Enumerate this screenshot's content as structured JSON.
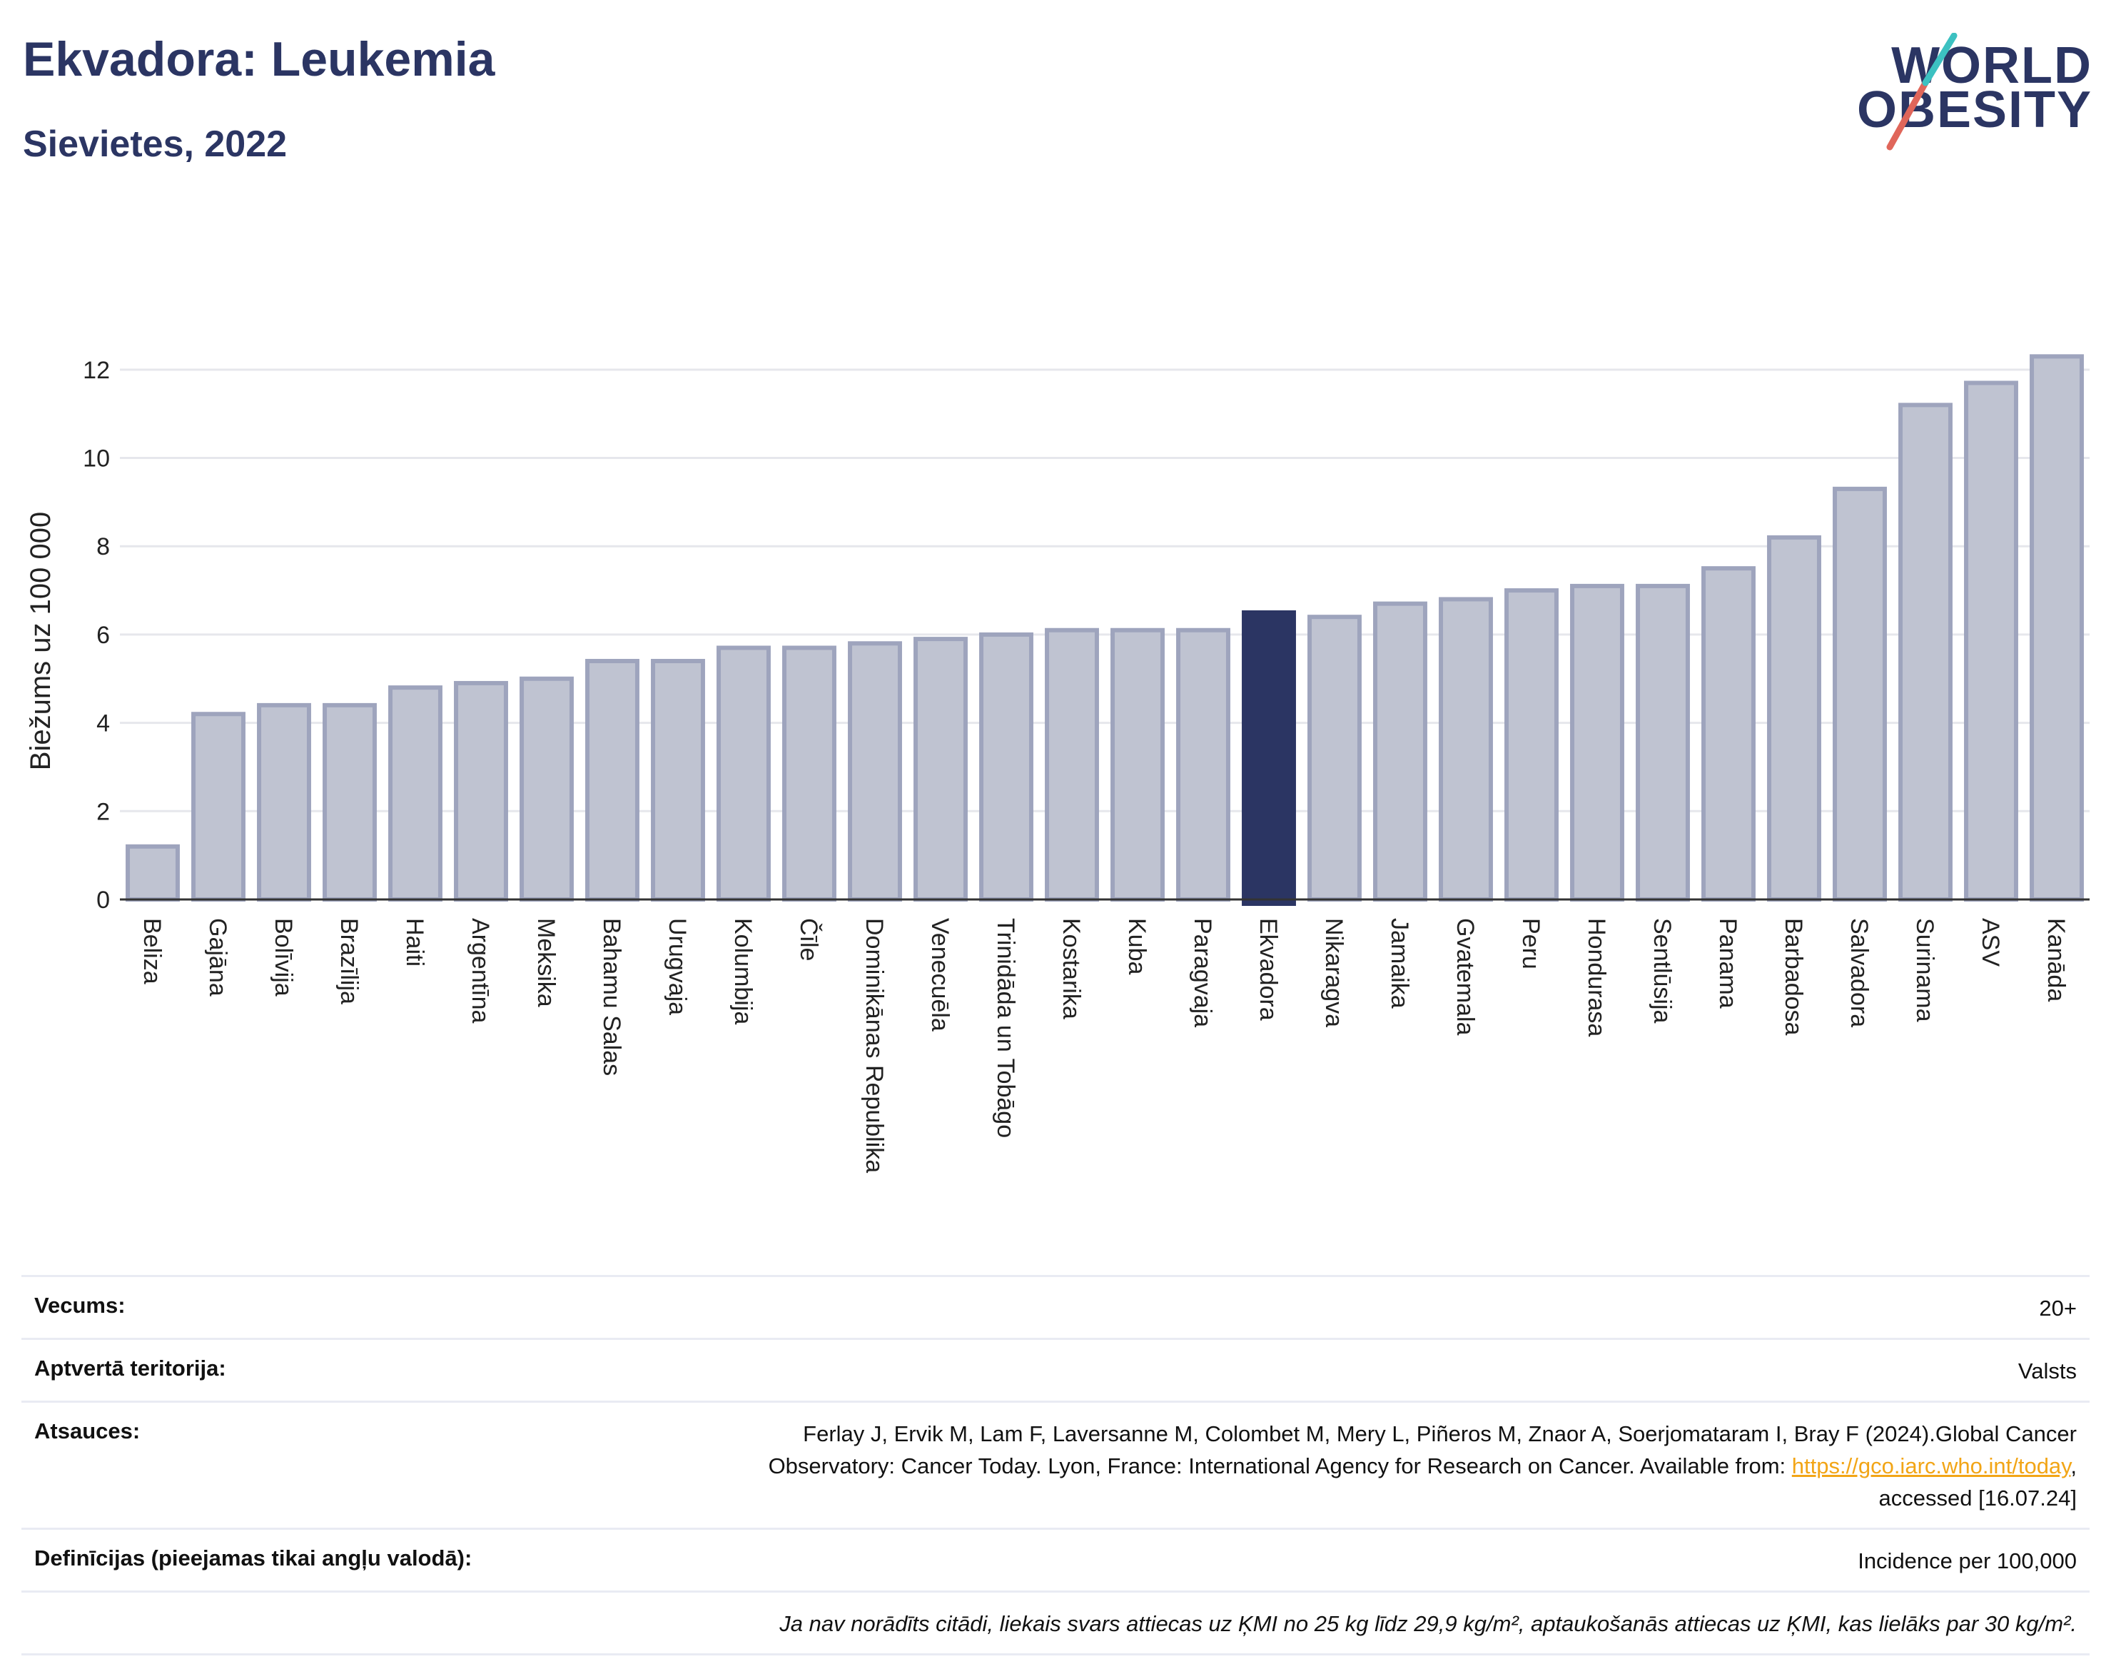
{
  "header": {
    "title": "Ekvadora: Leukemia",
    "subtitle": "Sievietes, 2022"
  },
  "logo": {
    "line1": "WORLD",
    "line2": "OBESITY",
    "colors": [
      "#2b3563",
      "#e0665a",
      "#3cc1c1"
    ]
  },
  "colors": {
    "bar": "#bfc3d1",
    "bar_stroke": "#9ea4bd",
    "highlight": "#2b3563",
    "axis": "#333333",
    "grid": "#e6e7ec"
  },
  "chart_data": {
    "type": "bar",
    "ylabel": "Biežums uz 100 000",
    "ylim": [
      0,
      13
    ],
    "yticks": [
      0,
      2,
      4,
      6,
      8,
      10,
      12
    ],
    "grid": true,
    "highlight": "Ekvadora",
    "categories": [
      "Beliza",
      "Gajāna",
      "Bolīvija",
      "Brazīlija",
      "Haiti",
      "Argentīna",
      "Meksika",
      "Bahamu Salas",
      "Urugvaja",
      "Kolumbija",
      "Čīle",
      "Dominikānas Republika",
      "Venecuēla",
      "Trinidāda un Tobāgo",
      "Kostarika",
      "Kuba",
      "Paragvaja",
      "Ekvadora",
      "Nikaragva",
      "Jamaika",
      "Gvatemala",
      "Peru",
      "Hondurasa",
      "Sentlūsija",
      "Panama",
      "Barbadosa",
      "Salvadora",
      "Surinama",
      "ASV",
      "Kanāda"
    ],
    "values": [
      1.2,
      4.2,
      4.4,
      4.4,
      4.8,
      4.9,
      5.0,
      5.4,
      5.4,
      5.7,
      5.7,
      5.8,
      5.9,
      6.0,
      6.1,
      6.1,
      6.1,
      6.5,
      6.4,
      6.7,
      6.8,
      7.0,
      7.1,
      7.1,
      7.5,
      8.2,
      9.3,
      11.2,
      11.7,
      12.3
    ]
  },
  "info": {
    "age_label": "Vecums:",
    "age_value": "20+",
    "coverage_label": "Aptvertā teritorija:",
    "coverage_value": "Valsts",
    "refs_label": "Atsauces:",
    "refs_line1": "Ferlay J, Ervik M, Lam F, Laversanne M, Colombet M, Mery L, Piñeros M, Znaor A, Soerjomataram I, Bray F (2024).Global Cancer",
    "refs_line2": "Observatory: Cancer Today. Lyon, France: International Agency for Research on Cancer. Available from: ",
    "refs_link": "https://gco.iarc.who.int/today",
    "refs_line2_end": ",",
    "refs_line3": "accessed [16.07.24]",
    "defs_label": "Definīcijas (pieejamas tikai angļu valodā):",
    "defs_value": "Incidence per 100,000",
    "note": "Ja nav norādīts citādi, liekais svars attiecas uz ĶMI no 25 kg līdz 29,9 kg/m², aptaukošanās attiecas uz ĶMI, kas lielāks par 30 kg/m²."
  }
}
